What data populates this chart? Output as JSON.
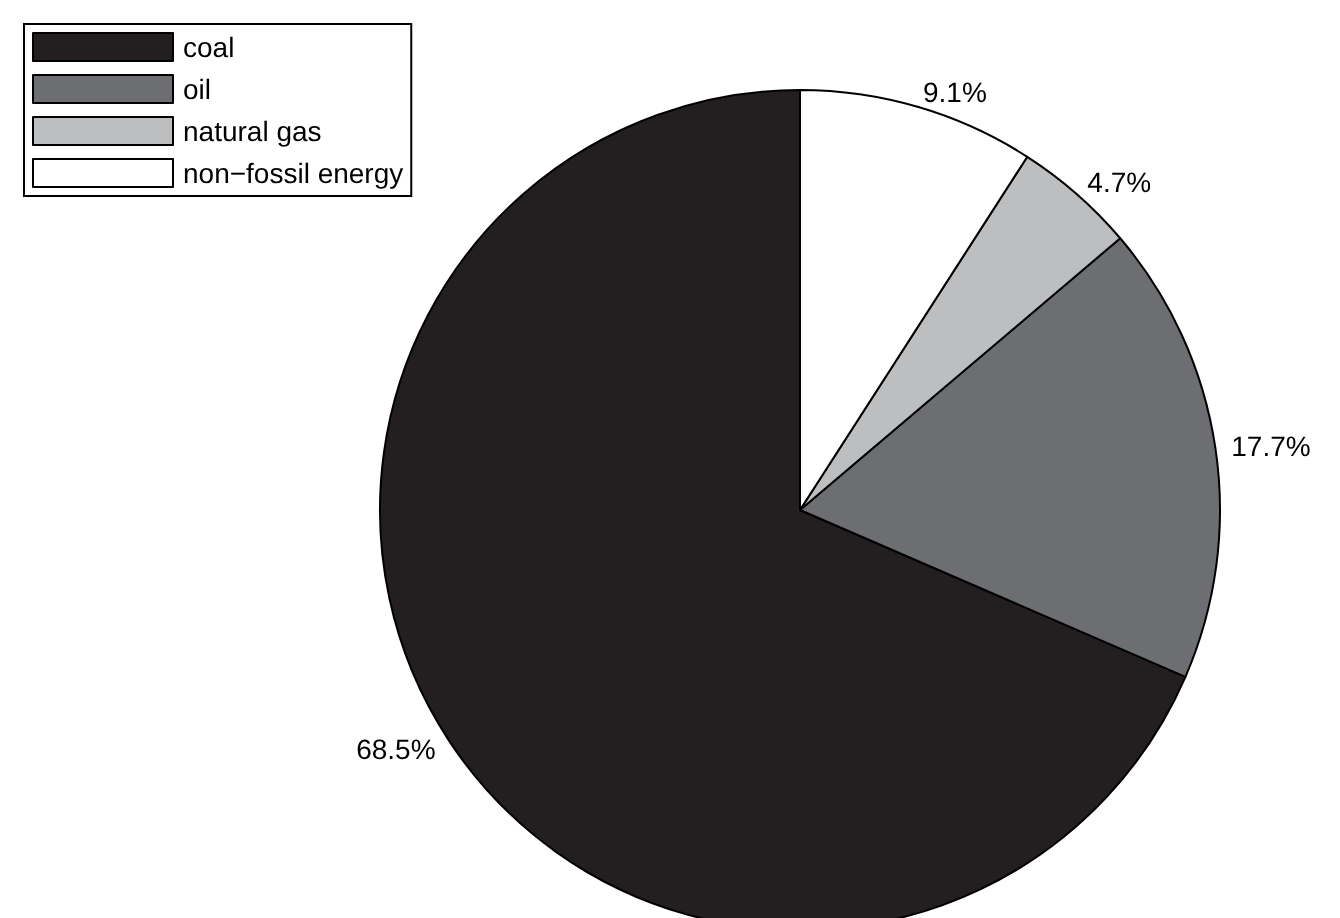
{
  "chart_data": {
    "type": "pie",
    "categories": [
      "coal",
      "oil",
      "natural gas",
      "non−fossil energy"
    ],
    "values": [
      68.5,
      17.7,
      4.7,
      9.1
    ],
    "colors": [
      "#231f20",
      "#6d6e71",
      "#bcbec0",
      "#ffffff"
    ],
    "value_labels": [
      "68.5%",
      "17.7%",
      "4.7%",
      "9.1%"
    ],
    "legend": "top left"
  }
}
